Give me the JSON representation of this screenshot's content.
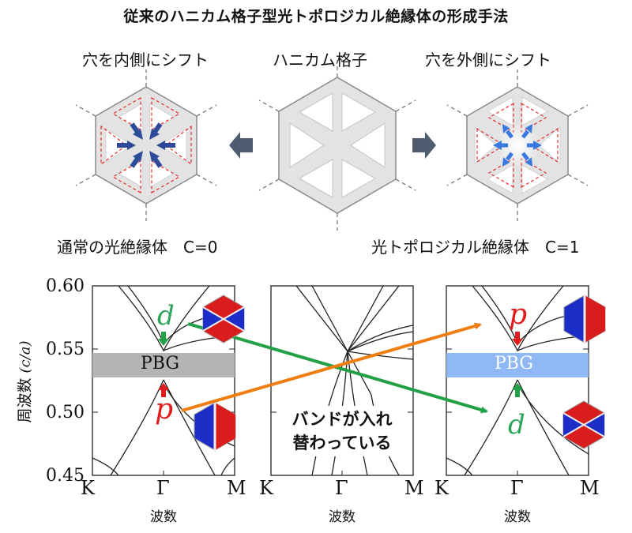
{
  "title": "従来のハニカム格子型光トポロジカル絶縁体の形成手法",
  "top_labels": {
    "left": "穴を内側にシフト",
    "center": "ハニカム格子",
    "right": "穴を外側にシフト"
  },
  "bottom_labels": {
    "left": "通常の光絶縁体　C=0",
    "right": "光トポロジカル絶縁体　C=1"
  },
  "plots": {
    "ylabel_main": "周波数",
    "ylabel_unit": "(c/a)",
    "yticks": [
      "0.60",
      "0.55",
      "0.50",
      "0.45"
    ],
    "xticks": [
      "K",
      "Γ",
      "M"
    ],
    "xlabel": "波数",
    "pbg": "PBG",
    "swap_text_line1": "バンドが入れ",
    "swap_text_line2": "替わっている",
    "left_upper_mode": "d",
    "left_lower_mode": "p",
    "right_upper_mode": "p",
    "right_lower_mode": "d"
  },
  "colors": {
    "arrow_green": "#22a046",
    "arrow_orange": "#f07d0f",
    "pbg_gray": "#b4b4b4",
    "pbg_blue": "#8fb8f4",
    "mode_red": "#e11b1b",
    "mode_green": "#2aa55a",
    "hex_fill": "#e3e3e3",
    "shift_arrow": "#2d4a9a",
    "big_arrow": "#4f5b6e"
  },
  "icons": [
    "shift-inward-arrow-icon",
    "shift-outward-arrow-icon",
    "mode-pattern-icon"
  ]
}
